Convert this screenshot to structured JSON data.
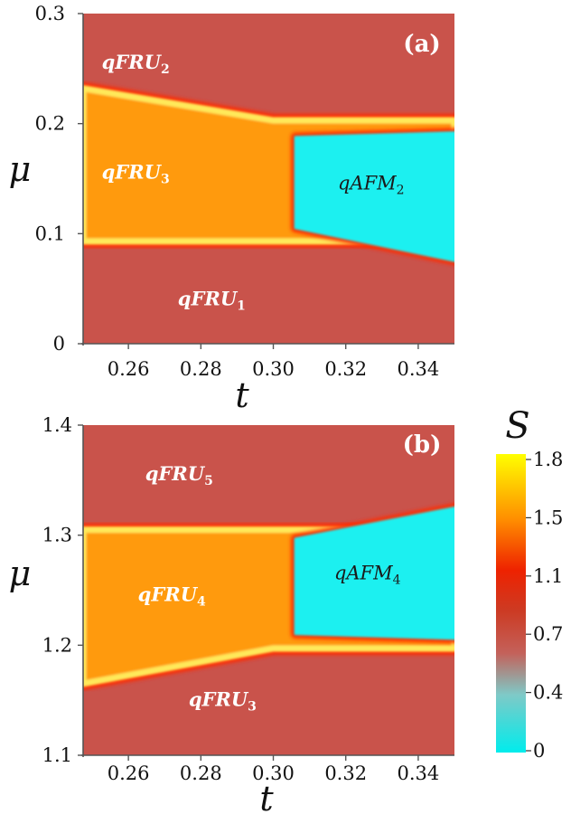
{
  "chart_data": [
    {
      "type": "heatmap",
      "panel_label": "(a)",
      "xlabel": "t",
      "ylabel": "μ",
      "xlim": [
        0.2475,
        0.35
      ],
      "ylim": [
        0,
        0.3
      ],
      "xticks": [
        "0.26",
        "0.28",
        "0.30",
        "0.32",
        "0.34"
      ],
      "yticks": [
        "0",
        "0.1",
        "0.2",
        "0.3"
      ],
      "colored_by": "S",
      "regions": [
        {
          "name": "qFRU",
          "sub": "2",
          "value": 0.85,
          "label_at": [
            0.262,
            0.25
          ]
        },
        {
          "name": "qFRU",
          "sub": "3",
          "value": 1.55,
          "label_at": [
            0.262,
            0.15
          ]
        },
        {
          "name": "qAFM",
          "sub": "2",
          "value": 0.0,
          "label_at": [
            0.327,
            0.14
          ],
          "dark": true
        },
        {
          "name": "qFRU",
          "sub": "1",
          "value": 0.85,
          "label_at": [
            0.283,
            0.035
          ]
        }
      ],
      "boundaries": {
        "fru3_top": [
          [
            0.2475,
            0.232
          ],
          [
            0.3,
            0.203
          ],
          [
            0.35,
            0.203
          ]
        ],
        "fru3_bottom": [
          [
            0.2475,
            0.093
          ],
          [
            0.3,
            0.093
          ]
        ],
        "afm_top": [
          [
            0.306,
            0.188
          ],
          [
            0.35,
            0.193
          ]
        ],
        "afm_bottom": [
          [
            0.306,
            0.105
          ],
          [
            0.35,
            0.07
          ]
        ],
        "afm_left_t": 0.306
      }
    },
    {
      "type": "heatmap",
      "panel_label": "(b)",
      "xlabel": "t",
      "ylabel": "μ",
      "xlim": [
        0.2475,
        0.35
      ],
      "ylim": [
        1.1,
        1.4
      ],
      "xticks": [
        "0.26",
        "0.28",
        "0.30",
        "0.32",
        "0.34"
      ],
      "yticks": [
        "1.1",
        "1.2",
        "1.3",
        "1.4"
      ],
      "colored_by": "S",
      "regions": [
        {
          "name": "qFRU",
          "sub": "5",
          "value": 0.85,
          "label_at": [
            0.274,
            1.35
          ]
        },
        {
          "name": "qFRU",
          "sub": "4",
          "value": 1.55,
          "label_at": [
            0.272,
            1.24
          ]
        },
        {
          "name": "qAFM",
          "sub": "4",
          "value": 0.0,
          "label_at": [
            0.326,
            1.26
          ],
          "dark": true
        },
        {
          "name": "qFRU",
          "sub": "3",
          "value": 0.85,
          "label_at": [
            0.286,
            1.145
          ]
        }
      ],
      "boundaries": {
        "fru4_top": [
          [
            0.2475,
            1.305
          ],
          [
            0.3,
            1.305
          ]
        ],
        "fru4_bottom": [
          [
            0.2475,
            1.165
          ],
          [
            0.3,
            1.197
          ],
          [
            0.35,
            1.197
          ]
        ],
        "afm_top": [
          [
            0.306,
            1.297
          ],
          [
            0.35,
            1.33
          ]
        ],
        "afm_bottom": [
          [
            0.306,
            1.21
          ],
          [
            0.35,
            1.205
          ]
        ],
        "afm_left_t": 0.306
      }
    }
  ],
  "colorbar": {
    "title": "S",
    "ticks": [
      "1.8",
      "1.5",
      "1.1",
      "0.7",
      "0.4",
      "0"
    ],
    "range": [
      0,
      1.8
    ],
    "stops": [
      {
        "v": 0.0,
        "color": "#00ecec"
      },
      {
        "v": 0.35,
        "color": "#7fc9c7"
      },
      {
        "v": 0.6,
        "color": "#c4615a"
      },
      {
        "v": 0.85,
        "color": "#cc3b24"
      },
      {
        "v": 1.1,
        "color": "#ee2200"
      },
      {
        "v": 1.4,
        "color": "#ff8c00"
      },
      {
        "v": 1.8,
        "color": "#ffff00"
      }
    ]
  },
  "colors": {
    "fru_background": "#c9534b",
    "fru_mid": "#ff9a0a",
    "afm": "#1ef0f0",
    "boundary": "#ff2a00",
    "glow": "#ffe95a"
  }
}
